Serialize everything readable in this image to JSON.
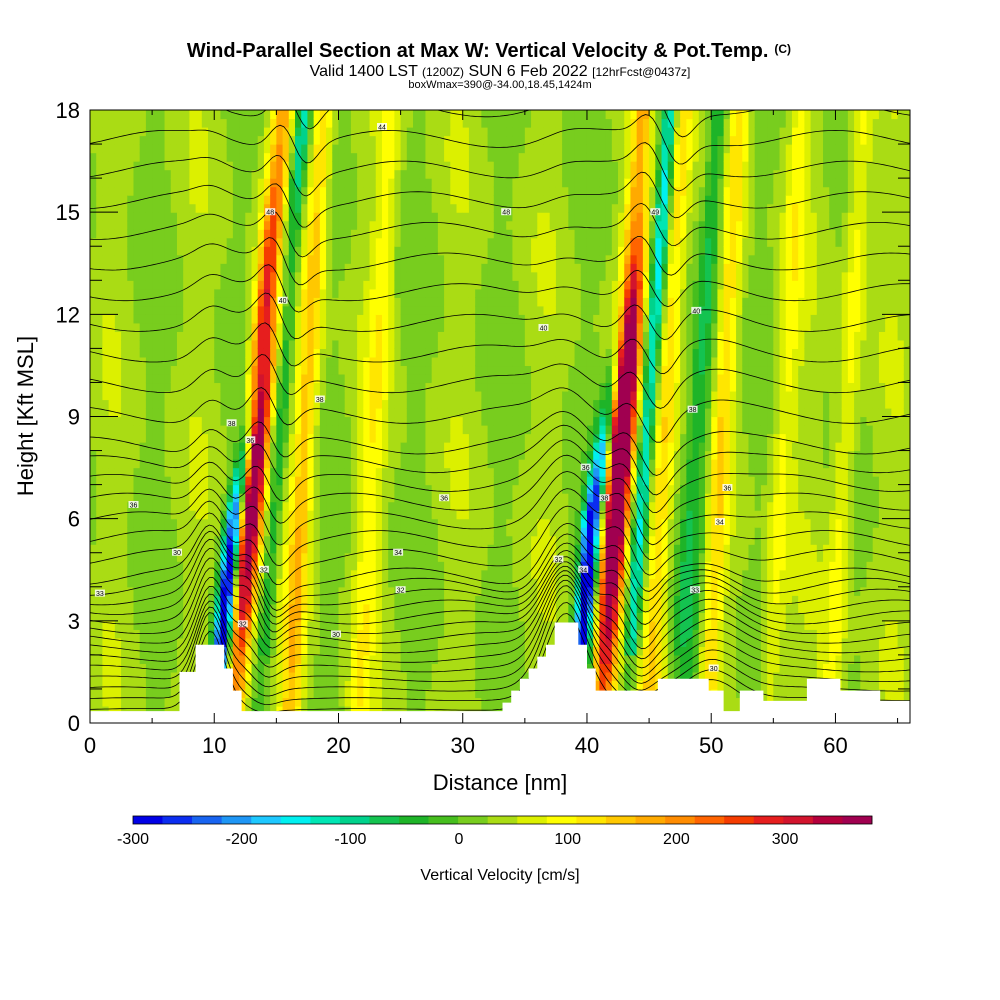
{
  "chart_data": {
    "type": "heatmap",
    "title_main": "Wind-Parallel Section at Max W: Vertical Velocity & Pot.Temp.",
    "title_copyright": "(C)",
    "subtitle_a": "Valid 1400 LST",
    "subtitle_b": "(1200Z)",
    "subtitle_c": "SUN 6 Feb 2022",
    "subtitle_d": "[12hrFcst@0437z]",
    "subtitle2": "boxWmax=390@-34.00,18.45,1424m",
    "xlabel": "Distance [nm]",
    "ylabel": "Height [Kft MSL]",
    "xlim": [
      0,
      66
    ],
    "ylim": [
      0,
      18
    ],
    "x_ticks": [
      "0",
      "10",
      "20",
      "30",
      "40",
      "50",
      "60"
    ],
    "y_ticks": [
      "0",
      "3",
      "6",
      "9",
      "12",
      "15",
      "18"
    ],
    "colorbar": {
      "label": "Vertical Velocity [cm/s]",
      "range": [
        -300,
        380
      ],
      "tick_labels": [
        "-300",
        "-200",
        "-100",
        "0",
        "100",
        "200",
        "300"
      ],
      "colors": [
        "#0000e6",
        "#0b2df0",
        "#1864f0",
        "#1e96f5",
        "#1ec8ff",
        "#00f0f0",
        "#00e6b4",
        "#00d28c",
        "#14c350",
        "#1eb428",
        "#46be1e",
        "#78cd1e",
        "#aadc14",
        "#dcf000",
        "#ffff00",
        "#ffe600",
        "#ffc800",
        "#ffaa00",
        "#ff8c00",
        "#ff6400",
        "#f53c00",
        "#e61e1e",
        "#d2142d",
        "#b4003c",
        "#a00050"
      ]
    },
    "updrafts": [
      {
        "x": 12.0,
        "peak_cm_s": 330,
        "tilt": 0.22
      },
      {
        "x": 41.5,
        "peak_cm_s": 390,
        "tilt": 0.2
      }
    ],
    "downdrafts": [
      {
        "x": 10.5,
        "peak_cm_s": -300,
        "tilt": 0.28
      },
      {
        "x": 39.5,
        "peak_cm_s": -300,
        "tilt": 0.22
      }
    ],
    "terrain_kft": [
      [
        0,
        0.35
      ],
      [
        7.2,
        0.35
      ],
      [
        7.2,
        1.5
      ],
      [
        8.5,
        1.5
      ],
      [
        8.5,
        2.3
      ],
      [
        10.8,
        2.3
      ],
      [
        10.8,
        1.6
      ],
      [
        11.5,
        1.6
      ],
      [
        11.5,
        0.95
      ],
      [
        12.2,
        0.95
      ],
      [
        12.2,
        0.35
      ],
      [
        33.2,
        0.35
      ],
      [
        33.2,
        0.6
      ],
      [
        33.9,
        0.6
      ],
      [
        33.9,
        0.95
      ],
      [
        34.6,
        0.95
      ],
      [
        34.6,
        1.3
      ],
      [
        35.3,
        1.3
      ],
      [
        35.3,
        1.6
      ],
      [
        36.0,
        1.6
      ],
      [
        36.0,
        1.95
      ],
      [
        36.7,
        1.95
      ],
      [
        36.7,
        2.3
      ],
      [
        37.4,
        2.3
      ],
      [
        37.4,
        2.95
      ],
      [
        39.3,
        2.95
      ],
      [
        39.3,
        2.3
      ],
      [
        40.0,
        2.3
      ],
      [
        40.0,
        1.6
      ],
      [
        40.7,
        1.6
      ],
      [
        40.7,
        0.95
      ],
      [
        45.7,
        0.95
      ],
      [
        45.7,
        1.3
      ],
      [
        49.8,
        1.3
      ],
      [
        49.8,
        0.95
      ],
      [
        51.0,
        0.95
      ],
      [
        51.0,
        0.35
      ],
      [
        52.3,
        0.35
      ],
      [
        52.3,
        0.95
      ],
      [
        54.2,
        0.95
      ],
      [
        54.2,
        0.65
      ],
      [
        57.7,
        0.65
      ],
      [
        57.7,
        1.3
      ],
      [
        60.4,
        1.3
      ],
      [
        60.4,
        0.95
      ],
      [
        63.6,
        0.95
      ],
      [
        63.6,
        0.65
      ],
      [
        66,
        0.65
      ]
    ],
    "theta_contour_labels": [
      {
        "text": "44",
        "x": 23.5,
        "y": 17.5
      },
      {
        "text": "48",
        "x": 14.5,
        "y": 15.0
      },
      {
        "text": "48",
        "x": 33.5,
        "y": 15.0
      },
      {
        "text": "49",
        "x": 45.5,
        "y": 15.0
      },
      {
        "text": "40",
        "x": 15.5,
        "y": 12.4
      },
      {
        "text": "40",
        "x": 36.5,
        "y": 11.6
      },
      {
        "text": "40",
        "x": 48.8,
        "y": 12.1
      },
      {
        "text": "38",
        "x": 18.5,
        "y": 9.5
      },
      {
        "text": "38",
        "x": 48.5,
        "y": 9.2
      },
      {
        "text": "38",
        "x": 11.4,
        "y": 8.8
      },
      {
        "text": "36",
        "x": 12.9,
        "y": 8.3
      },
      {
        "text": "36",
        "x": 28.5,
        "y": 6.6
      },
      {
        "text": "36",
        "x": 3.5,
        "y": 6.4
      },
      {
        "text": "36",
        "x": 39.9,
        "y": 7.5
      },
      {
        "text": "38",
        "x": 41.4,
        "y": 6.6
      },
      {
        "text": "36",
        "x": 51.3,
        "y": 6.9
      },
      {
        "text": "34",
        "x": 24.8,
        "y": 5.0
      },
      {
        "text": "34",
        "x": 50.7,
        "y": 5.9
      },
      {
        "text": "32",
        "x": 37.7,
        "y": 4.8
      },
      {
        "text": "34",
        "x": 39.7,
        "y": 4.5
      },
      {
        "text": "30",
        "x": 7.0,
        "y": 5.0
      },
      {
        "text": "32",
        "x": 14.0,
        "y": 4.5
      },
      {
        "text": "32",
        "x": 25.0,
        "y": 3.9
      },
      {
        "text": "33",
        "x": 0.8,
        "y": 3.8
      },
      {
        "text": "33",
        "x": 48.7,
        "y": 3.9
      },
      {
        "text": "30",
        "x": 19.8,
        "y": 2.6
      },
      {
        "text": "32",
        "x": 12.3,
        "y": 2.9
      },
      {
        "text": "30",
        "x": 50.2,
        "y": 1.6
      }
    ]
  }
}
